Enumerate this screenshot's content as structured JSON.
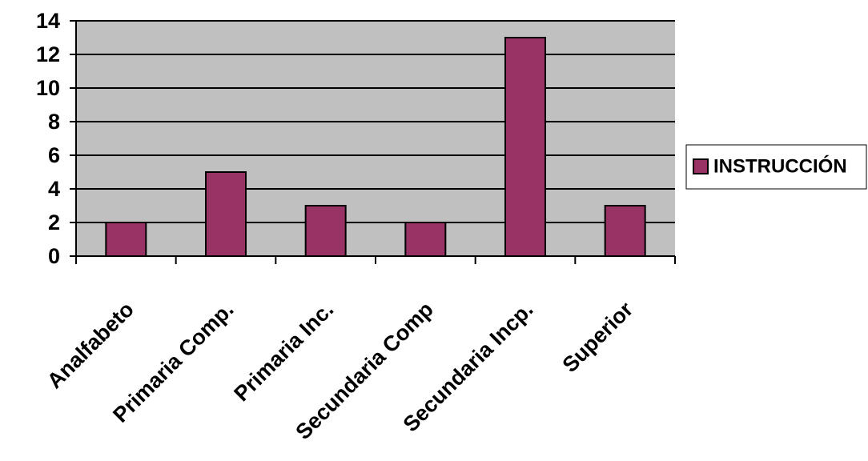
{
  "chart_data": {
    "type": "bar",
    "categories": [
      "Analfabeto",
      "Primaria Comp.",
      "Primaria Inc.",
      "Secundaria Comp",
      "Secundaria Incp.",
      "Superior"
    ],
    "series": [
      {
        "name": "INSTRUCCIÓN",
        "values": [
          2,
          5,
          3,
          2,
          13,
          3
        ],
        "color": "#993366"
      }
    ],
    "yticks": [
      "0",
      "2",
      "4",
      "6",
      "8",
      "10",
      "12",
      "14"
    ],
    "ylim": [
      0,
      14
    ],
    "grid": true,
    "plot_background": "#c0c0c0",
    "legend_position": "right",
    "title": "",
    "xlabel": "",
    "ylabel": ""
  }
}
